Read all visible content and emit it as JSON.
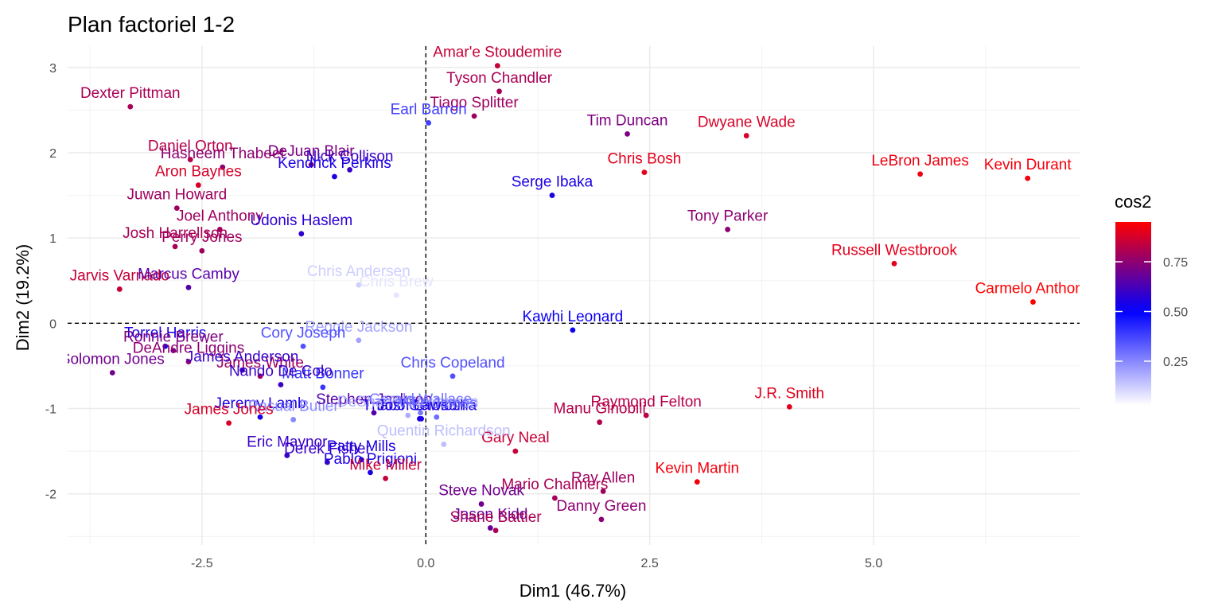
{
  "chart_data": {
    "type": "scatter",
    "title": "Plan factoriel 1-2",
    "xlabel": "Dim1 (46.7%)",
    "ylabel": "Dim2 (19.2%)",
    "xlim": [
      -4.0,
      7.3
    ],
    "ylim": [
      -2.6,
      3.25
    ],
    "x_ticks": [
      -2.5,
      0.0,
      2.5,
      5.0
    ],
    "x_tick_labels": [
      "-2.5",
      "0.0",
      "2.5",
      "5.0"
    ],
    "y_ticks": [
      -2,
      -1,
      0,
      1,
      2,
      3
    ],
    "y_tick_labels": [
      "-2",
      "-1",
      "0",
      "1",
      "2",
      "3"
    ],
    "reference_lines": {
      "x": 0,
      "y": 0,
      "style": "dashed"
    },
    "grid": true,
    "legend": {
      "title": "cos2",
      "position": "right",
      "range": [
        0.03,
        0.95
      ],
      "ticks": [
        0.25,
        0.5,
        0.75
      ],
      "tick_labels": [
        "0.25",
        "0.50",
        "0.75"
      ],
      "colors": {
        "low": "#ffffff",
        "mid": "#0000ff",
        "high": "#ff0000",
        "midpoint": 0.5
      }
    },
    "points": [
      {
        "label": "Amar'e Stoudemire",
        "x": 0.8,
        "y": 3.02,
        "cos2": 0.85
      },
      {
        "label": "Tyson Chandler",
        "x": 0.82,
        "y": 2.72,
        "cos2": 0.8
      },
      {
        "label": "Tiago Splitter",
        "x": 0.54,
        "y": 2.43,
        "cos2": 0.78
      },
      {
        "label": "Earl Barron",
        "x": 0.03,
        "y": 2.35,
        "cos2": 0.38
      },
      {
        "label": "Dexter Pittman",
        "x": -3.3,
        "y": 2.54,
        "cos2": 0.8
      },
      {
        "label": "Tim Duncan",
        "x": 2.25,
        "y": 2.22,
        "cos2": 0.72
      },
      {
        "label": "Dwyane Wade",
        "x": 3.58,
        "y": 2.2,
        "cos2": 0.88
      },
      {
        "label": "Chris Bosh",
        "x": 2.44,
        "y": 1.77,
        "cos2": 0.9
      },
      {
        "label": "LeBron James",
        "x": 5.52,
        "y": 1.75,
        "cos2": 0.92
      },
      {
        "label": "Kevin Durant",
        "x": 6.72,
        "y": 1.7,
        "cos2": 0.93
      },
      {
        "label": "Serge Ibaka",
        "x": 1.41,
        "y": 1.5,
        "cos2": 0.55
      },
      {
        "label": "Tony Parker",
        "x": 3.37,
        "y": 1.1,
        "cos2": 0.75
      },
      {
        "label": "Russell Westbrook",
        "x": 5.23,
        "y": 0.7,
        "cos2": 0.9
      },
      {
        "label": "Carmelo Anthony",
        "x": 6.78,
        "y": 0.25,
        "cos2": 0.95
      },
      {
        "label": "Kawhi Leonard",
        "x": 1.64,
        "y": -0.08,
        "cos2": 0.52
      },
      {
        "label": "J.R. Smith",
        "x": 4.06,
        "y": -0.98,
        "cos2": 0.9
      },
      {
        "label": "Raymond Felton",
        "x": 2.46,
        "y": -1.08,
        "cos2": 0.82
      },
      {
        "label": "Manu Ginobili",
        "x": 1.94,
        "y": -1.16,
        "cos2": 0.82
      },
      {
        "label": "Kevin Martin",
        "x": 3.03,
        "y": -1.86,
        "cos2": 0.93
      },
      {
        "label": "Ray Allen",
        "x": 1.98,
        "y": -1.97,
        "cos2": 0.78
      },
      {
        "label": "Danny Green",
        "x": 1.96,
        "y": -2.3,
        "cos2": 0.75
      },
      {
        "label": "Mario Chalmers",
        "x": 1.44,
        "y": -2.05,
        "cos2": 0.8
      },
      {
        "label": "Gary Neal",
        "x": 1.0,
        "y": -1.5,
        "cos2": 0.85
      },
      {
        "label": "Steve Novak",
        "x": 0.62,
        "y": -2.12,
        "cos2": 0.7
      },
      {
        "label": "Jason Kidd",
        "x": 0.72,
        "y": -2.4,
        "cos2": 0.68
      },
      {
        "label": "Shane Battier",
        "x": 0.78,
        "y": -2.43,
        "cos2": 0.8
      },
      {
        "label": "Chris Copeland",
        "x": 0.3,
        "y": -0.62,
        "cos2": 0.35
      },
      {
        "label": "Thabo Sefolosha",
        "x": -0.07,
        "y": -1.12,
        "cos2": 0.55
      },
      {
        "label": "Quentin Richardson",
        "x": 0.2,
        "y": -1.42,
        "cos2": 0.15
      },
      {
        "label": "Chris Andersen",
        "x": -0.75,
        "y": 0.45,
        "cos2": 0.12
      },
      {
        "label": "Chris Brew",
        "x": -0.33,
        "y": 0.33,
        "cos2": 0.08
      },
      {
        "label": "Reggie Jackson",
        "x": -0.75,
        "y": -0.2,
        "cos2": 0.2
      },
      {
        "label": "Cory Joseph",
        "x": -1.37,
        "y": -0.27,
        "cos2": 0.35
      },
      {
        "label": "DeJuan Blair",
        "x": -1.28,
        "y": 1.86,
        "cos2": 0.72
      },
      {
        "label": "Daniel Orton",
        "x": -2.63,
        "y": 1.92,
        "cos2": 0.82
      },
      {
        "label": "Hasheem Thabeet",
        "x": -2.27,
        "y": 1.83,
        "cos2": 0.75
      },
      {
        "label": "Nick Collison",
        "x": -0.85,
        "y": 1.8,
        "cos2": 0.6
      },
      {
        "label": "Kendrick Perkins",
        "x": -1.02,
        "y": 1.72,
        "cos2": 0.55
      },
      {
        "label": "Aron Baynes",
        "x": -2.54,
        "y": 1.62,
        "cos2": 0.88
      },
      {
        "label": "Juwan Howard",
        "x": -2.78,
        "y": 1.35,
        "cos2": 0.78
      },
      {
        "label": "Joel Anthony",
        "x": -2.3,
        "y": 1.1,
        "cos2": 0.78
      },
      {
        "label": "Udonis Haslem",
        "x": -1.39,
        "y": 1.05,
        "cos2": 0.58
      },
      {
        "label": "Josh Harrellson",
        "x": -2.8,
        "y": 0.9,
        "cos2": 0.8
      },
      {
        "label": "Perry Jones",
        "x": -2.5,
        "y": 0.85,
        "cos2": 0.78
      },
      {
        "label": "Jarvis Varnado",
        "x": -3.42,
        "y": 0.4,
        "cos2": 0.85
      },
      {
        "label": "Marcus Camby",
        "x": -2.65,
        "y": 0.42,
        "cos2": 0.65
      },
      {
        "label": "Torrel Harris",
        "x": -2.91,
        "y": -0.27,
        "cos2": 0.55
      },
      {
        "label": "Ronnie Brewer",
        "x": -2.82,
        "y": -0.32,
        "cos2": 0.72
      },
      {
        "label": "Solomon Jones",
        "x": -3.5,
        "y": -0.58,
        "cos2": 0.7
      },
      {
        "label": "DeAndre Liggins",
        "x": -2.65,
        "y": -0.45,
        "cos2": 0.75
      },
      {
        "label": "James White",
        "x": -1.85,
        "y": -0.62,
        "cos2": 0.78
      },
      {
        "label": "James Anderson",
        "x": -2.05,
        "y": -0.55,
        "cos2": 0.6
      },
      {
        "label": "Matt Bonner",
        "x": -1.15,
        "y": -0.75,
        "cos2": 0.4
      },
      {
        "label": "Nando De Colo",
        "x": -1.62,
        "y": -0.72,
        "cos2": 0.6
      },
      {
        "label": "Jeremy Lamb",
        "x": -1.85,
        "y": -1.1,
        "cos2": 0.55
      },
      {
        "label": "Rasual Butler",
        "x": -1.48,
        "y": -1.13,
        "cos2": 0.25
      },
      {
        "label": "Stephen Jackson",
        "x": -0.58,
        "y": -1.05,
        "cos2": 0.65
      },
      {
        "label": "DeShawn Stevenson",
        "x": -0.2,
        "y": -1.08,
        "cos2": 0.18
      },
      {
        "label": "Gerald Wallace",
        "x": -0.06,
        "y": -1.05,
        "cos2": 0.28
      },
      {
        "label": "Josh Lawson",
        "x": -0.05,
        "y": -1.12,
        "cos2": 0.55
      },
      {
        "label": "Mike James",
        "x": 0.12,
        "y": -1.1,
        "cos2": 0.3
      },
      {
        "label": "James Jones",
        "x": -2.2,
        "y": -1.17,
        "cos2": 0.88
      },
      {
        "label": "Eric Maynor",
        "x": -1.55,
        "y": -1.55,
        "cos2": 0.6
      },
      {
        "label": "Derek Fisher",
        "x": -1.1,
        "y": -1.63,
        "cos2": 0.6
      },
      {
        "label": "Patty Mills",
        "x": -0.72,
        "y": -1.6,
        "cos2": 0.55
      },
      {
        "label": "Pablo Prigioni",
        "x": -0.62,
        "y": -1.75,
        "cos2": 0.55
      },
      {
        "label": "Mike Miller",
        "x": -0.45,
        "y": -1.82,
        "cos2": 0.85
      }
    ]
  }
}
